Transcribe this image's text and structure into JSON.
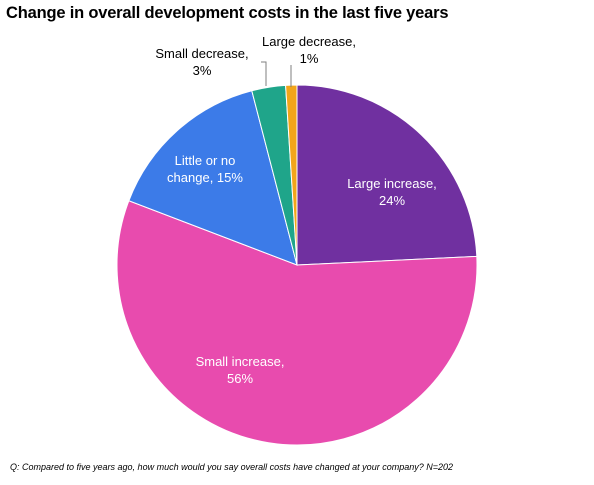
{
  "chart_data": {
    "type": "pie",
    "title": "Change in overall development costs in the last five years",
    "categories": [
      "Large increase",
      "Small increase",
      "Little or no change",
      "Small decrease",
      "Large decrease"
    ],
    "values": [
      24,
      56,
      15,
      3,
      1
    ],
    "value_suffix": "%",
    "colors": [
      "#7030A0",
      "#E84BAE",
      "#3C7BE8",
      "#1FA58A",
      "#F2A51A"
    ],
    "label_lines": [
      [
        "Large increase,",
        "24%"
      ],
      [
        "Small increase,",
        "56%"
      ],
      [
        "Little or no",
        "change, 15%"
      ],
      [
        "Small decrease,",
        "3%"
      ],
      [
        "Large decrease,",
        "1%"
      ]
    ],
    "footnote": "Q: Compared to five years ago, how much would you say overall costs have changed at your company? N=202"
  }
}
